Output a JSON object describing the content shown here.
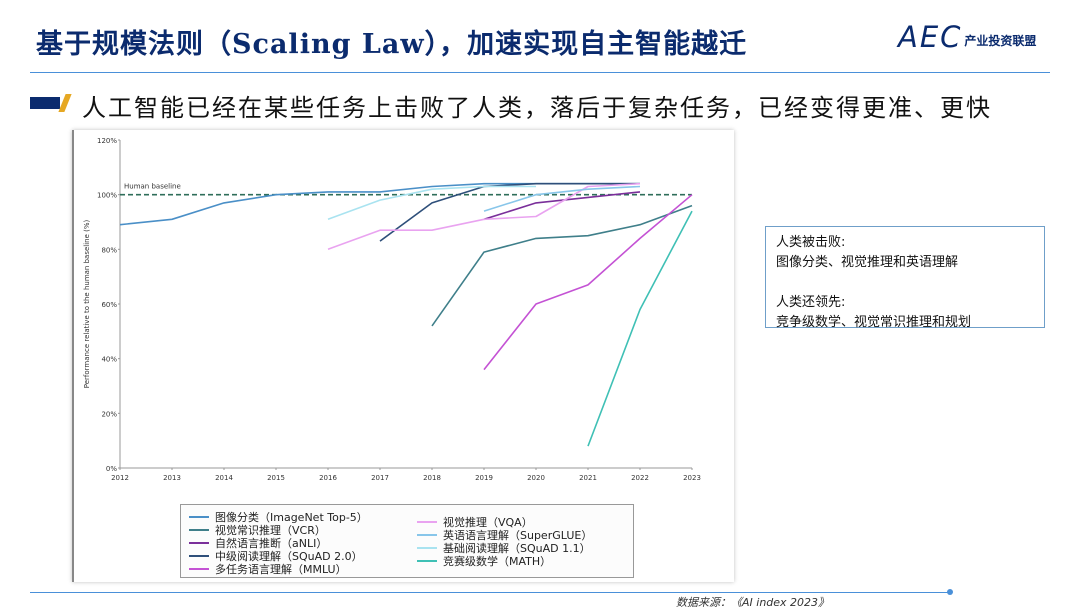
{
  "header": {
    "title": "基于规模法则（Scaling Law），加速实现自主智能越迁",
    "logo_mark": "AEC",
    "logo_text": "产业投资联盟",
    "subtitle": "人工智能已经在某些任务上击败了人类，落后于复杂任务，已经变得更准、更快"
  },
  "note": {
    "line1": "人类被击败:",
    "line2": "图像分类、视觉推理和英语理解",
    "line3": "人类还领先:",
    "line4": "竞争级数学、视觉常识推理和规划"
  },
  "source": "数据来源：《AI index 2023》",
  "chart_data": {
    "type": "line",
    "ylabel": "Performance relative to the human baseline (%)",
    "xlabel": "",
    "ylim": [
      0,
      120
    ],
    "yticks": [
      "0%",
      "20%",
      "40%",
      "60%",
      "80%",
      "100%",
      "120%"
    ],
    "x": [
      2012,
      2013,
      2014,
      2015,
      2016,
      2017,
      2018,
      2019,
      2020,
      2021,
      2022,
      2023
    ],
    "baseline": {
      "label": "Human baseline",
      "value": 100
    },
    "series": [
      {
        "name": "图像分类（ImageNet Top-5）",
        "color": "#4a8fc7",
        "points": [
          [
            2012,
            89
          ],
          [
            2013,
            91
          ],
          [
            2014,
            97
          ],
          [
            2015,
            100
          ],
          [
            2016,
            101
          ],
          [
            2017,
            101
          ],
          [
            2018,
            103
          ],
          [
            2019,
            104
          ],
          [
            2020,
            104
          ],
          [
            2021,
            104
          ],
          [
            2022,
            104
          ]
        ]
      },
      {
        "name": "视觉常识推理（VCR）",
        "color": "#3f7f8a",
        "points": [
          [
            2018,
            52
          ],
          [
            2019,
            79
          ],
          [
            2020,
            84
          ],
          [
            2021,
            85
          ],
          [
            2022,
            89
          ],
          [
            2023,
            96
          ]
        ]
      },
      {
        "name": "自然语言推断（aNLI）",
        "color": "#7a2f9a",
        "points": [
          [
            2019,
            91
          ],
          [
            2020,
            97
          ],
          [
            2021,
            99
          ],
          [
            2022,
            101
          ]
        ]
      },
      {
        "name": "中级阅读理解（SQuAD 2.0）",
        "color": "#2e4f7a",
        "points": [
          [
            2017,
            83
          ],
          [
            2018,
            97
          ],
          [
            2019,
            103
          ],
          [
            2020,
            104
          ],
          [
            2021,
            104
          ],
          [
            2022,
            104
          ]
        ]
      },
      {
        "name": "多任务语言理解（MMLU）",
        "color": "#c452d4",
        "points": [
          [
            2019,
            36
          ],
          [
            2020,
            60
          ],
          [
            2021,
            67
          ],
          [
            2022,
            84
          ],
          [
            2023,
            100
          ]
        ]
      },
      {
        "name": "视觉推理（VQA）",
        "color": "#e9a3f0",
        "points": [
          [
            2016,
            80
          ],
          [
            2017,
            87
          ],
          [
            2018,
            87
          ],
          [
            2019,
            91
          ],
          [
            2020,
            92
          ],
          [
            2021,
            103
          ],
          [
            2022,
            104
          ]
        ]
      },
      {
        "name": "英语语言理解（SuperGLUE）",
        "color": "#88c6ea",
        "points": [
          [
            2019,
            94
          ],
          [
            2020,
            100
          ],
          [
            2021,
            102
          ],
          [
            2022,
            103
          ]
        ]
      },
      {
        "name": "基础阅读理解（SQuAD 1.1）",
        "color": "#a9e3f0",
        "points": [
          [
            2016,
            91
          ],
          [
            2017,
            98
          ],
          [
            2018,
            102
          ],
          [
            2019,
            103
          ],
          [
            2020,
            103
          ]
        ]
      },
      {
        "name": "竞赛级数学（MATH）",
        "color": "#3fc0b5",
        "points": [
          [
            2021,
            8
          ],
          [
            2022,
            58
          ],
          [
            2023,
            94
          ]
        ]
      }
    ],
    "legend_placement": "bottom"
  }
}
